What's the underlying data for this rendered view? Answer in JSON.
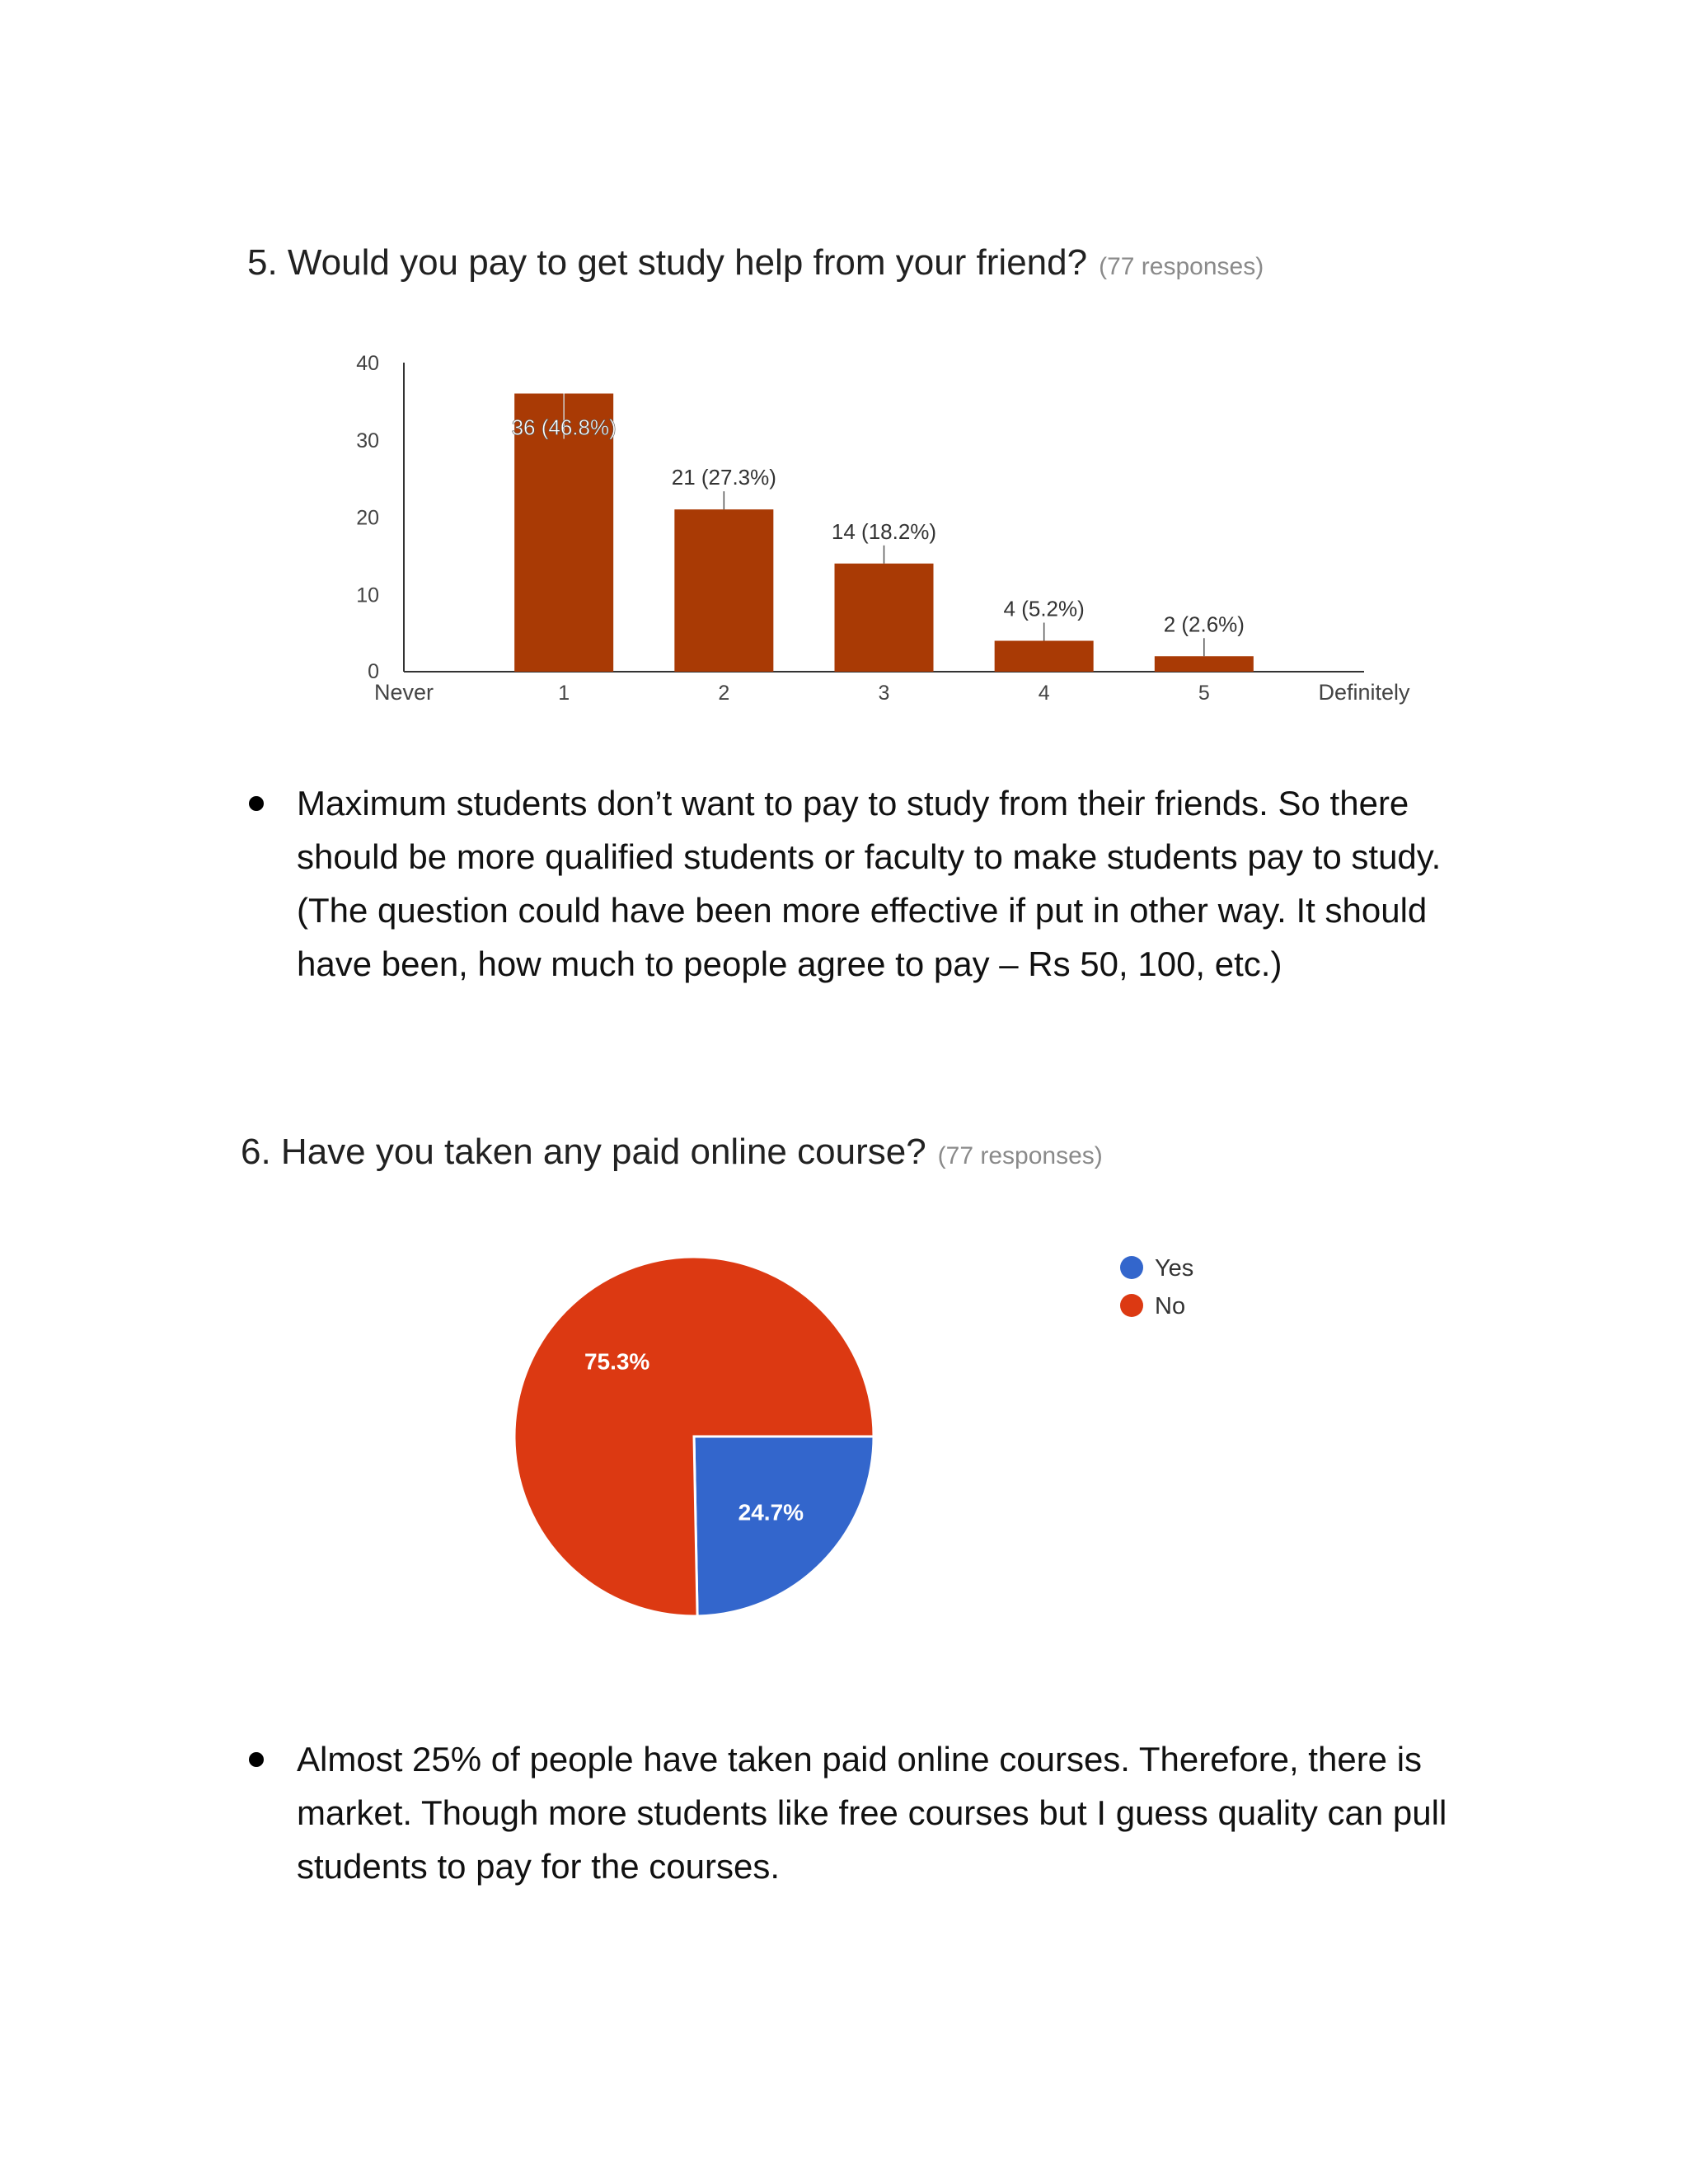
{
  "questions": [
    {
      "title": "5. Would you pay to get study help from your friend?",
      "responses": "(77 responses)"
    },
    {
      "title": "6. Have you taken any paid online course?",
      "responses": "(77 responses)"
    }
  ],
  "bullets": [
    "Maximum students don’t want to pay to study from their friends. So there should be more qualified students or faculty to make students pay to study. (The question could have been more effective if put in other way. It should have been, how much to people agree to pay – Rs 50, 100, etc.)",
    "Almost 25% of people have taken paid online courses. Therefore, there is market. Though more students like free courses but I guess quality can pull students to pay for the courses."
  ],
  "chart_data": [
    {
      "type": "bar",
      "title": "5. Would you pay to get study help from your friend?",
      "categories": [
        "1",
        "2",
        "3",
        "4",
        "5"
      ],
      "values": [
        36,
        21,
        14,
        4,
        2
      ],
      "data_labels": [
        "36 (46.8%)",
        "21 (27.3%)",
        "14 (18.2%)",
        "4 (5.2%)",
        "2 (2.6%)"
      ],
      "x_end_labels": [
        "Never",
        "Definitely"
      ],
      "y_ticks": [
        0,
        10,
        20,
        30,
        40
      ],
      "ylim": [
        0,
        40
      ],
      "bar_color": "#a93a05",
      "grid": false
    },
    {
      "type": "pie",
      "title": "6. Have you taken any paid online course?",
      "slices": [
        {
          "label": "Yes",
          "value": 24.7,
          "display": "24.7%",
          "color": "#3366cc"
        },
        {
          "label": "No",
          "value": 75.3,
          "display": "75.3%",
          "color": "#dc3912"
        }
      ],
      "legend": "right"
    }
  ]
}
